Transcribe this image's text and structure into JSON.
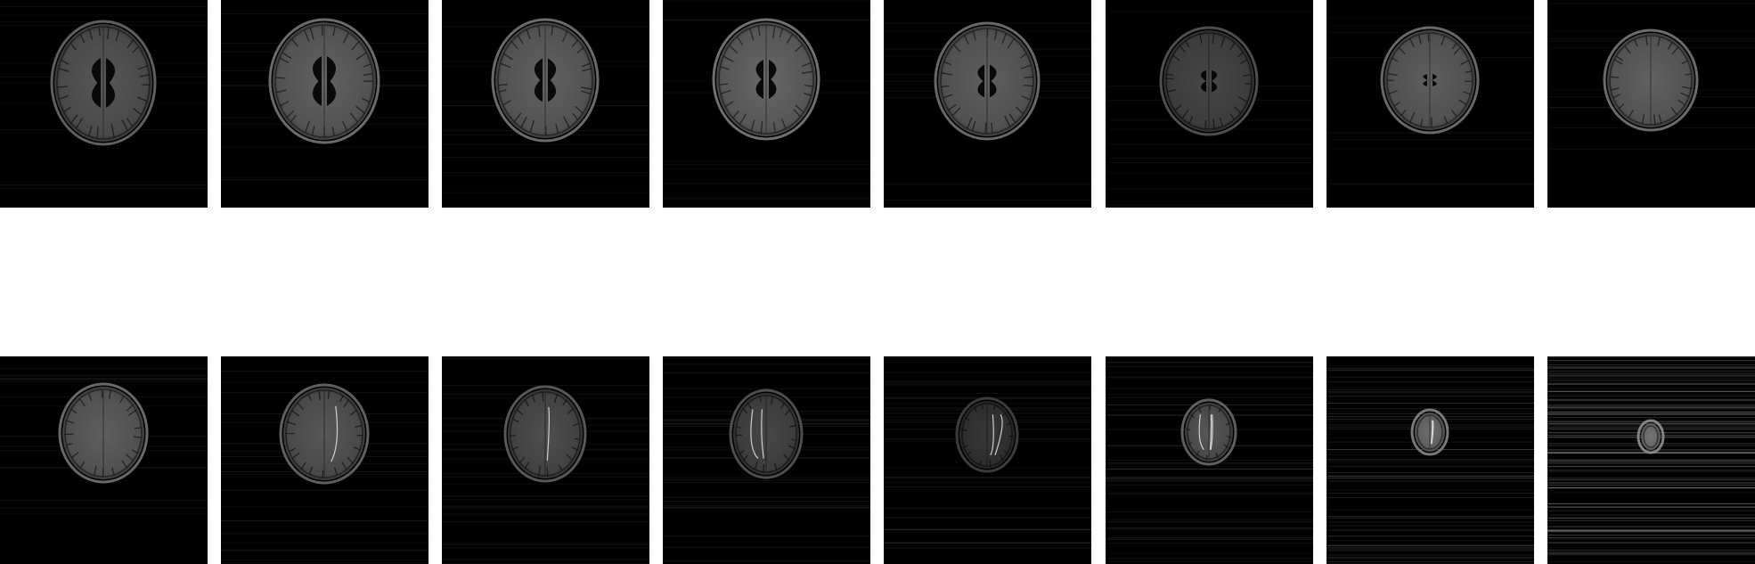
{
  "figure": {
    "background": "#ffffff",
    "tile_background": "#000000",
    "rows": [
      {
        "name": "top-row",
        "slices": [
          {
            "label": "",
            "ventricles": 1.0,
            "brightness": 0.55,
            "noise": 0.05,
            "vessels": 0
          },
          {
            "label": "",
            "ventricles": 1.0,
            "brightness": 0.62,
            "noise": 0.05,
            "vessels": 0
          },
          {
            "label": "",
            "ventricles": 0.85,
            "brightness": 0.62,
            "noise": 0.05,
            "vessels": 0
          },
          {
            "label": "",
            "ventricles": 0.75,
            "brightness": 0.65,
            "noise": 0.05,
            "vessels": 0
          },
          {
            "label": "",
            "ventricles": 0.6,
            "brightness": 0.6,
            "noise": 0.05,
            "vessels": 0
          },
          {
            "label": "",
            "ventricles": 0.35,
            "brightness": 0.45,
            "noise": 0.05,
            "vessels": 0
          },
          {
            "label": "",
            "ventricles": 0.12,
            "brightness": 0.6,
            "noise": 0.05,
            "vessels": 0
          },
          {
            "label": "",
            "ventricles": 0.0,
            "brightness": 0.62,
            "noise": 0.05,
            "vessels": 0
          }
        ]
      },
      {
        "name": "bottom-row",
        "slices": [
          {
            "label": "",
            "ventricles": 0.0,
            "brightness": 0.6,
            "noise": 0.08,
            "vessels": 0
          },
          {
            "label": "",
            "ventricles": 0.0,
            "brightness": 0.55,
            "noise": 0.1,
            "vessels": 1
          },
          {
            "label": "",
            "ventricles": 0.0,
            "brightness": 0.5,
            "noise": 0.12,
            "vessels": 1
          },
          {
            "label": "",
            "ventricles": 0.0,
            "brightness": 0.45,
            "noise": 0.14,
            "vessels": 2
          },
          {
            "label": "",
            "ventricles": 0.0,
            "brightness": 0.35,
            "noise": 0.16,
            "vessels": 2
          },
          {
            "label": "",
            "ventricles": 0.0,
            "brightness": 0.55,
            "noise": 0.2,
            "vessels": 3
          },
          {
            "label": "",
            "ventricles": 0.0,
            "brightness": 0.7,
            "noise": 0.3,
            "vessels": 2
          },
          {
            "label": "",
            "ventricles": 0.0,
            "brightness": 0.75,
            "noise": 0.55,
            "vessels": 0
          }
        ]
      }
    ]
  }
}
